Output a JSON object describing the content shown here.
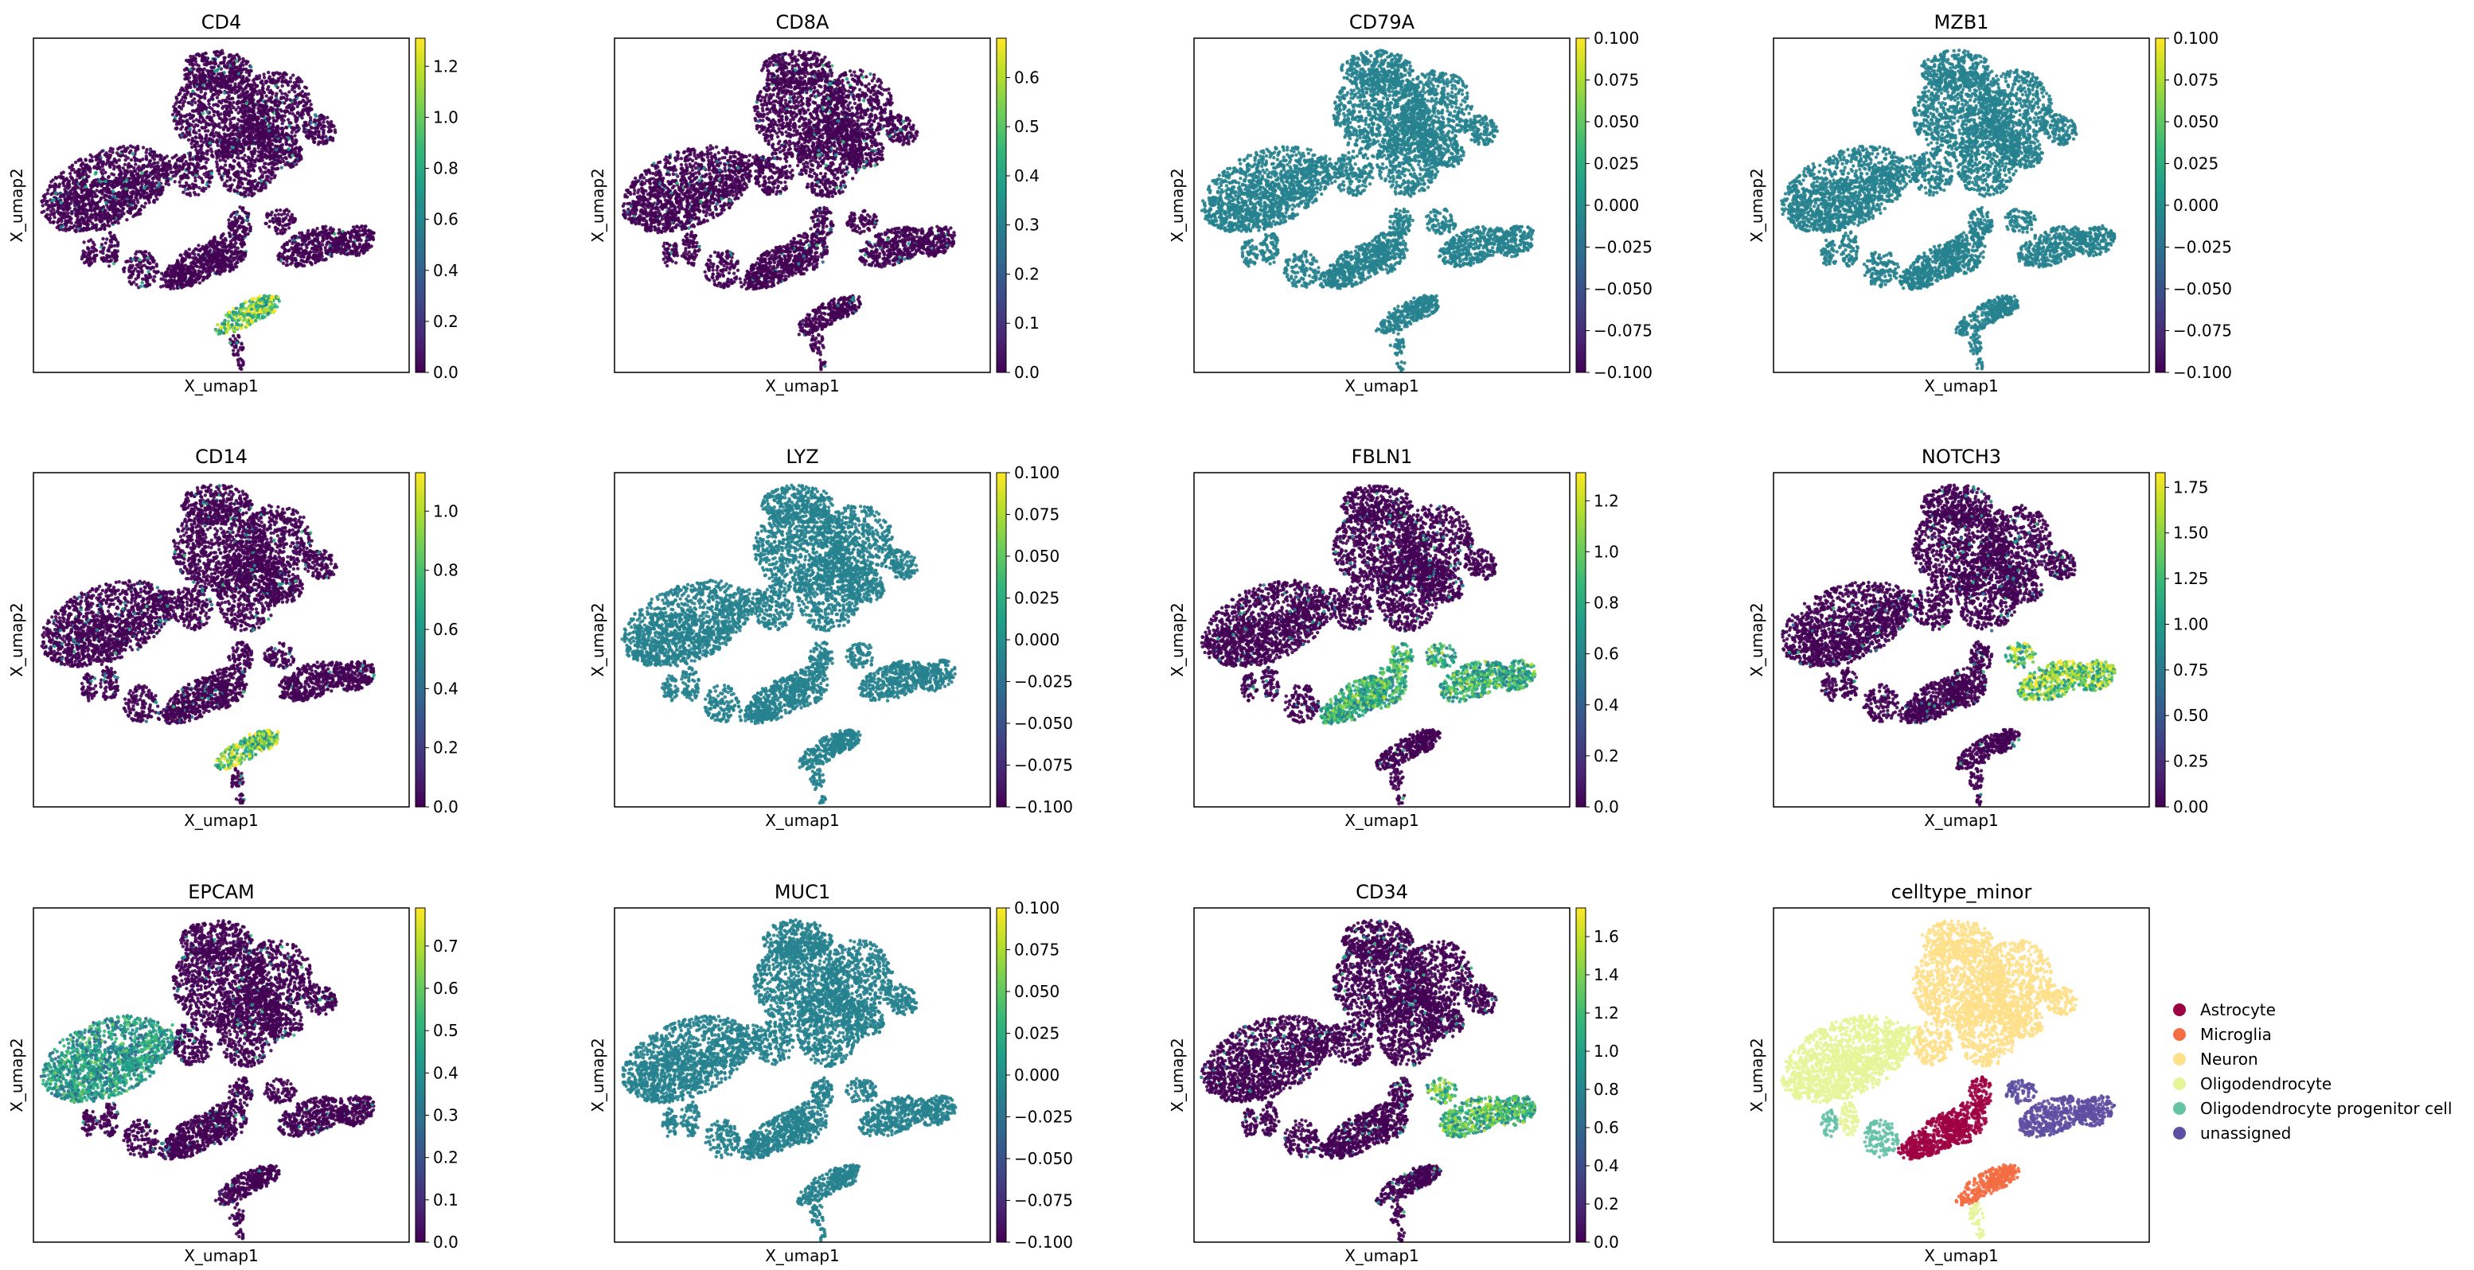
{
  "figure": {
    "xlabel": "X_umap1",
    "ylabel": "X_umap2"
  },
  "colormaps": {
    "viridis": [
      "#440154",
      "#482878",
      "#3e4a89",
      "#31688e",
      "#26828e",
      "#1f9e89",
      "#35b779",
      "#6ece58",
      "#b5de2b",
      "#fde725"
    ]
  },
  "chart_data": [
    {
      "type": "scatter",
      "title": "CD4",
      "colorbar_ticks": [
        "0.0",
        "0.2",
        "0.4",
        "0.6",
        "0.8",
        "1.0",
        "1.2"
      ],
      "colorbar_range": [
        0,
        1.31
      ],
      "highlight_clusters": [
        "bottom_loop"
      ],
      "highlight_level": 0.85
    },
    {
      "type": "scatter",
      "title": "CD8A",
      "colorbar_ticks": [
        "0.0",
        "0.1",
        "0.2",
        "0.3",
        "0.4",
        "0.5",
        "0.6"
      ],
      "colorbar_range": [
        0,
        0.68
      ],
      "highlight_clusters": [],
      "highlight_level": 0.4
    },
    {
      "type": "scatter",
      "title": "CD79A",
      "colorbar_ticks": [
        "−0.100",
        "−0.075",
        "−0.050",
        "−0.025",
        "0.000",
        "0.025",
        "0.050",
        "0.075",
        "0.100"
      ],
      "colorbar_range": [
        -0.1,
        0.1
      ],
      "constant": true
    },
    {
      "type": "scatter",
      "title": "MZB1",
      "colorbar_ticks": [
        "−0.100",
        "−0.075",
        "−0.050",
        "−0.025",
        "0.000",
        "0.025",
        "0.050",
        "0.075",
        "0.100"
      ],
      "colorbar_range": [
        -0.1,
        0.1
      ],
      "constant": true
    },
    {
      "type": "scatter",
      "title": "CD14",
      "colorbar_ticks": [
        "0.0",
        "0.2",
        "0.4",
        "0.6",
        "0.8",
        "1.0"
      ],
      "colorbar_range": [
        0,
        1.13
      ],
      "highlight_clusters": [
        "bottom_loop"
      ],
      "highlight_level": 0.85
    },
    {
      "type": "scatter",
      "title": "LYZ",
      "colorbar_ticks": [
        "−0.100",
        "−0.075",
        "−0.050",
        "−0.025",
        "0.000",
        "0.025",
        "0.050",
        "0.075",
        "0.100"
      ],
      "colorbar_range": [
        -0.1,
        0.1
      ],
      "constant": true
    },
    {
      "type": "scatter",
      "title": "FBLN1",
      "colorbar_ticks": [
        "0.0",
        "0.2",
        "0.4",
        "0.6",
        "0.8",
        "1.0",
        "1.2"
      ],
      "colorbar_range": [
        0,
        1.31
      ],
      "highlight_clusters": [
        "right_cluster",
        "lower_mid"
      ],
      "highlight_level": 0.7
    },
    {
      "type": "scatter",
      "title": "NOTCH3",
      "colorbar_ticks": [
        "0.00",
        "0.25",
        "0.50",
        "0.75",
        "1.00",
        "1.25",
        "1.50",
        "1.75"
      ],
      "colorbar_range": [
        0,
        1.83
      ],
      "highlight_clusters": [
        "right_cluster"
      ],
      "highlight_level": 0.85
    },
    {
      "type": "scatter",
      "title": "EPCAM",
      "colorbar_ticks": [
        "0.0",
        "0.1",
        "0.2",
        "0.3",
        "0.4",
        "0.5",
        "0.6",
        "0.7"
      ],
      "colorbar_range": [
        0,
        0.79
      ],
      "highlight_clusters": [
        "left_blob"
      ],
      "highlight_level": 0.6
    },
    {
      "type": "scatter",
      "title": "MUC1",
      "colorbar_ticks": [
        "−0.100",
        "−0.075",
        "−0.050",
        "−0.025",
        "0.000",
        "0.025",
        "0.050",
        "0.075",
        "0.100"
      ],
      "colorbar_range": [
        -0.1,
        0.1
      ],
      "constant": true
    },
    {
      "type": "scatter",
      "title": "CD34",
      "colorbar_ticks": [
        "0.0",
        "0.2",
        "0.4",
        "0.6",
        "0.8",
        "1.0",
        "1.2",
        "1.4",
        "1.6"
      ],
      "colorbar_range": [
        0,
        1.75
      ],
      "highlight_clusters": [
        "right_cluster"
      ],
      "highlight_level": 0.75
    },
    {
      "type": "scatter",
      "title": "celltype_minor",
      "categorical": true,
      "legend": [
        {
          "label": "Astrocyte",
          "color": "#9e0142"
        },
        {
          "label": "Microglia",
          "color": "#f46d43"
        },
        {
          "label": "Neuron",
          "color": "#fee08b"
        },
        {
          "label": "Oligodendrocyte",
          "color": "#e6f598"
        },
        {
          "label": "Oligodendrocyte progenitor cell",
          "color": "#66c2a5"
        },
        {
          "label": "unassigned",
          "color": "#5e4fa2"
        }
      ],
      "legend_placement": "right"
    }
  ]
}
